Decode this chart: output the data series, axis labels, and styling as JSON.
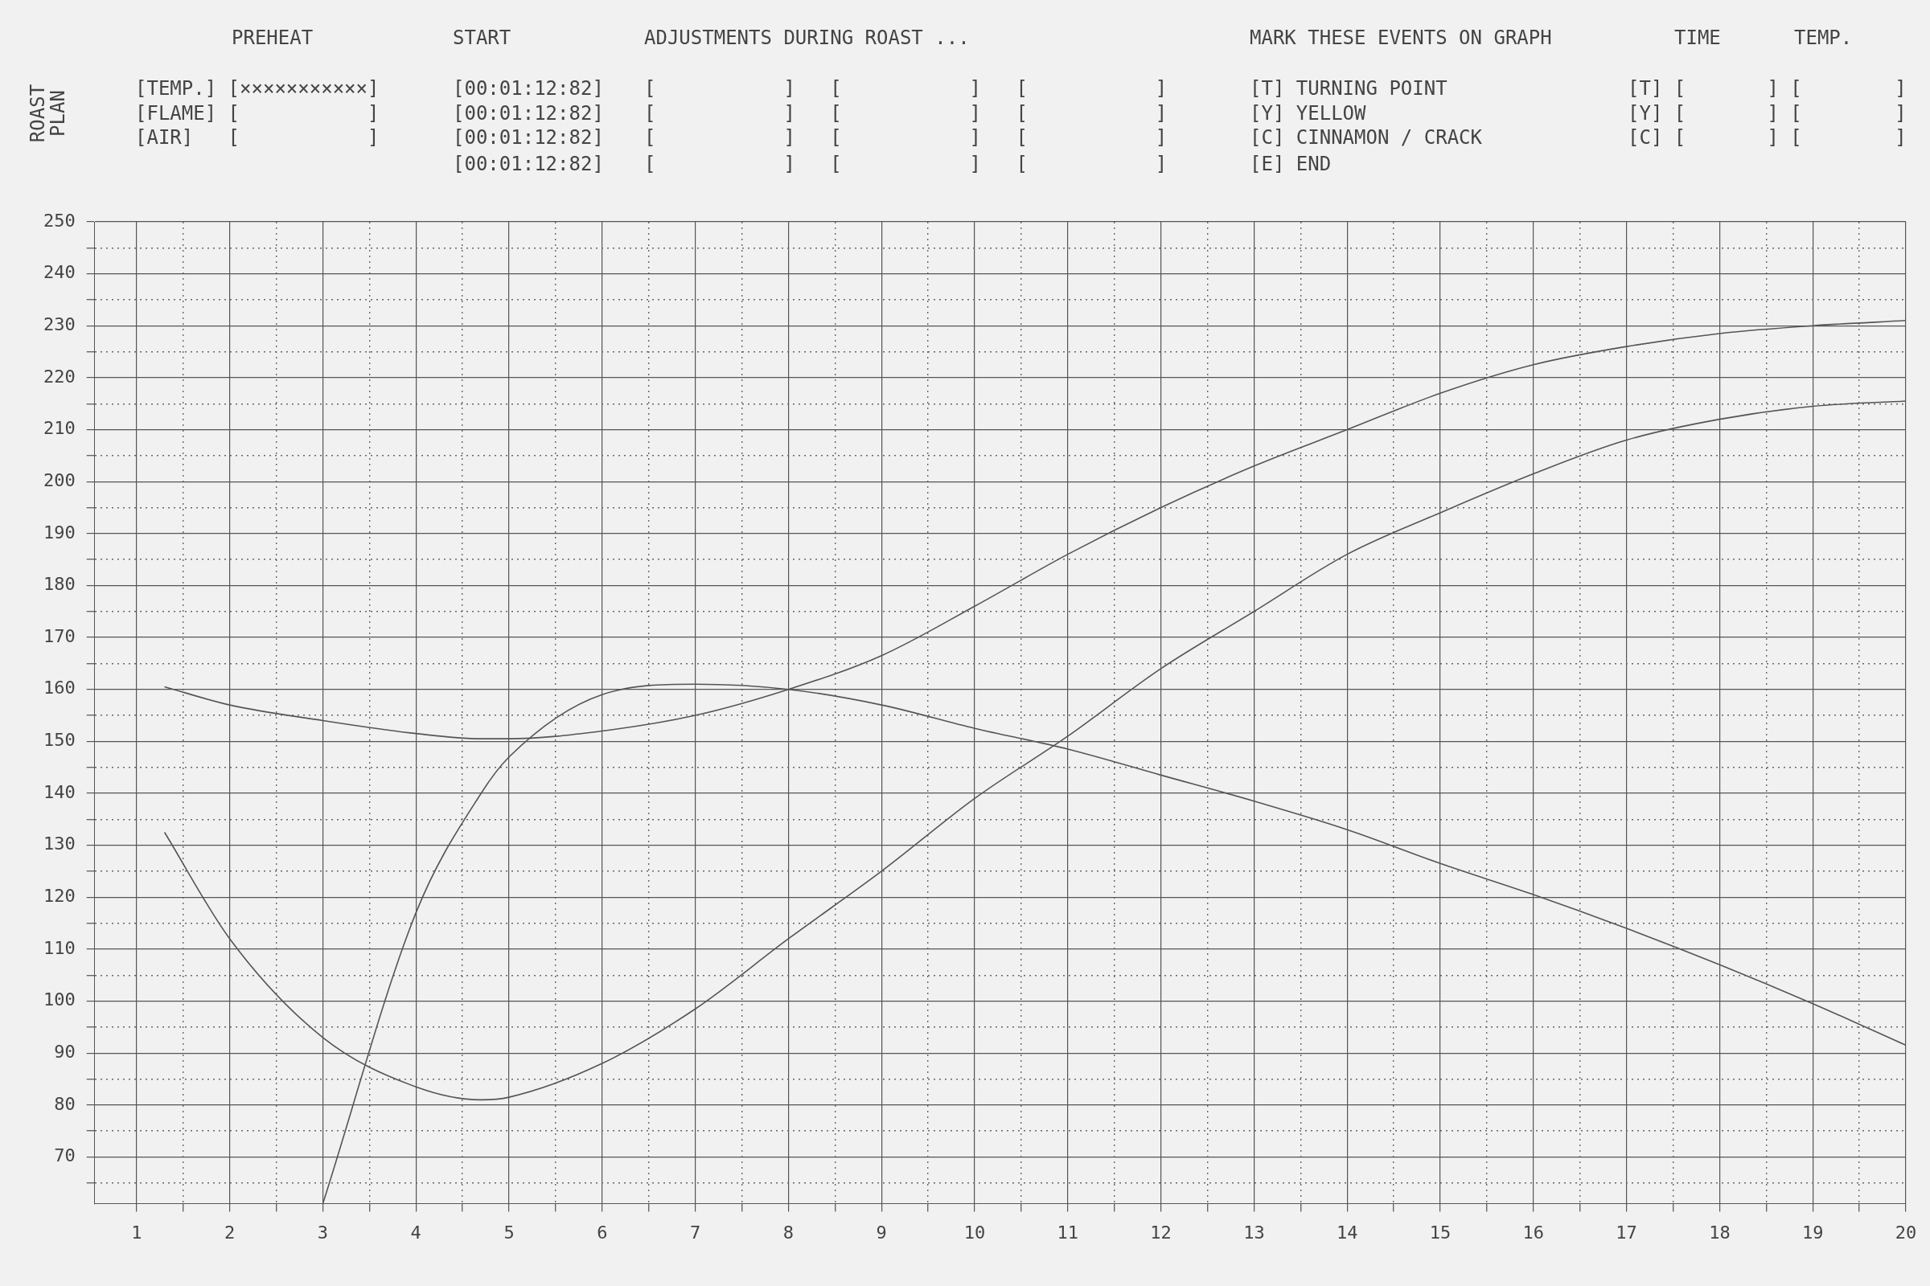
{
  "chart_data": {
    "type": "line",
    "annotations": [
      "ROAST PLAN",
      "PREHEAT",
      "START",
      "ADJUSTMENTS DURING ROAST ...",
      "MARK THESE EVENTS ON GRAPH",
      "TIME",
      "TEMP.",
      "[TEMP.] [×××××××××××]",
      "[FLAME] [           ]",
      "[AIR]   [           ]",
      "[00:01:12:82]",
      "[00:01:12:82]",
      "[00:01:12:82]",
      "[00:01:12:82]",
      "[           ]   [           ]   [           ]",
      "[           ]   [           ]   [           ]",
      "[           ]   [           ]   [           ]",
      "[           ]   [           ]   [           ]",
      "[T] TURNING POINT",
      "[Y] YELLOW",
      "[C] CINNAMON / CRACK",
      "[E] END",
      "[T] [       ] [        ]",
      "[Y] [       ] [        ]",
      "[C] [       ] [        ]"
    ],
    "x": [
      1.3,
      2,
      3,
      4,
      4.7,
      5,
      6,
      7,
      8,
      9,
      10,
      11,
      12,
      13,
      14,
      15,
      16,
      17,
      18,
      19,
      20
    ],
    "series": [
      {
        "color": "#555555",
        "values": [
          160.5,
          157,
          154,
          151.5,
          150.5,
          150.5,
          152,
          155,
          160,
          166.5,
          176,
          186,
          195,
          203,
          210,
          217,
          222.5,
          226,
          228.5,
          230,
          231
        ]
      },
      {
        "color": "#555555",
        "values": [
          132.5,
          112,
          93,
          83.5,
          81,
          81.5,
          88,
          98.5,
          112,
          125,
          139,
          151,
          164,
          175,
          186,
          194,
          201.5,
          208,
          212,
          214.5,
          215.5
        ]
      },
      {
        "color": "#555555",
        "values": [
          null,
          null,
          61,
          117,
          140,
          147,
          159,
          161,
          160,
          157,
          152.5,
          148.5,
          143.5,
          138.5,
          133,
          126.5,
          120.5,
          114,
          107,
          99.5,
          91.5
        ]
      }
    ],
    "xlim": [
      0.55,
      20
    ],
    "xticks": [
      1,
      {
        "value": 1.5,
        "label": null
      },
      2,
      {
        "value": 2.5,
        "label": null
      },
      3,
      {
        "value": 3.5,
        "label": null
      },
      4,
      {
        "value": 4.5,
        "label": null
      },
      5,
      {
        "value": 5.5,
        "label": null
      },
      6,
      {
        "value": 6.5,
        "label": null
      },
      7,
      {
        "value": 7.5,
        "label": null
      },
      8,
      {
        "value": 8.5,
        "label": null
      },
      9,
      {
        "value": 9.5,
        "label": null
      },
      10,
      {
        "value": 10.5,
        "label": null
      },
      11,
      {
        "value": 11.5,
        "label": null
      },
      12,
      {
        "value": 12.5,
        "label": null
      },
      13,
      {
        "value": 13.5,
        "label": null
      },
      14,
      {
        "value": 14.5,
        "label": null
      },
      15,
      {
        "value": 15.5,
        "label": null
      },
      16,
      {
        "value": 16.5,
        "label": null
      },
      17,
      {
        "value": 17.5,
        "label": null
      },
      18,
      {
        "value": 18.5,
        "label": null
      },
      19,
      {
        "value": 19.5,
        "label": null
      },
      20
    ],
    "ylim": [
      61,
      250
    ],
    "yticks": [
      {
        "value": 65,
        "label": null
      },
      70,
      {
        "value": 75,
        "label": null
      },
      80,
      {
        "value": 85,
        "label": null
      },
      90,
      {
        "value": 95,
        "label": null
      },
      100,
      {
        "value": 105,
        "label": null
      },
      110,
      {
        "value": 115,
        "label": null
      },
      120,
      {
        "value": 125,
        "label": null
      },
      130,
      {
        "value": 135,
        "label": null
      },
      140,
      {
        "value": 145,
        "label": null
      },
      150,
      {
        "value": 155,
        "label": null
      },
      160,
      {
        "value": 165,
        "label": null
      },
      170,
      {
        "value": 175,
        "label": null
      },
      180,
      {
        "value": 185,
        "label": null
      },
      190,
      {
        "value": 195,
        "label": null
      },
      200,
      {
        "value": 205,
        "label": null
      },
      210,
      {
        "value": 215,
        "label": null
      },
      220,
      {
        "value": 225,
        "label": null
      },
      230,
      {
        "value": 235,
        "label": null
      },
      240,
      {
        "value": 245,
        "label": null
      },
      250
    ],
    "grid": true,
    "legend": false,
    "marker": "none",
    "line_style": "solid"
  }
}
